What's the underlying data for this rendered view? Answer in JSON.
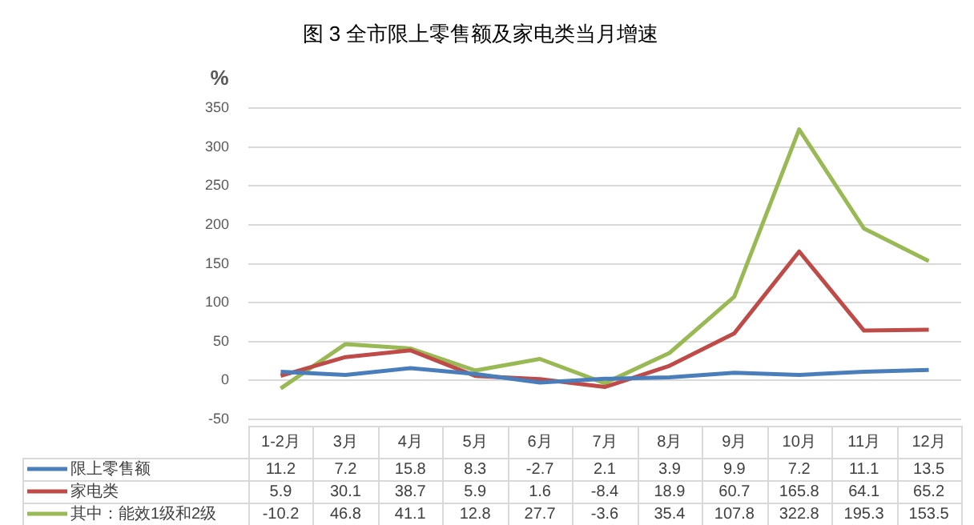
{
  "chart_data": {
    "type": "line",
    "title": "图 3 全市限上零售额及家电类当月增速",
    "ylabel": "%",
    "categories": [
      "1-2月",
      "3月",
      "4月",
      "5月",
      "6月",
      "7月",
      "8月",
      "9月",
      "10月",
      "11月",
      "12月"
    ],
    "series": [
      {
        "name": "限上零售额",
        "color": "#4a7ebb",
        "values": [
          11.2,
          7.2,
          15.8,
          8.3,
          -2.7,
          2.1,
          3.9,
          9.9,
          7.2,
          11.1,
          13.5
        ]
      },
      {
        "name": "家电类",
        "color": "#be4b48",
        "values": [
          5.9,
          30.1,
          38.7,
          5.9,
          1.6,
          -8.4,
          18.9,
          60.7,
          165.8,
          64.1,
          65.2
        ]
      },
      {
        "name": "其中：能效1级和2级",
        "color": "#98b954",
        "values": [
          -10.2,
          46.8,
          41.1,
          12.8,
          27.7,
          -3.6,
          35.4,
          107.8,
          322.8,
          195.3,
          153.5
        ]
      }
    ],
    "ylim": [
      -50,
      350
    ],
    "yticks": [
      -50,
      0,
      50,
      100,
      150,
      200,
      250,
      300,
      350
    ],
    "grid": "y",
    "legend": "bottom",
    "data_labels": true,
    "marker": "none",
    "line_style": "solid"
  }
}
